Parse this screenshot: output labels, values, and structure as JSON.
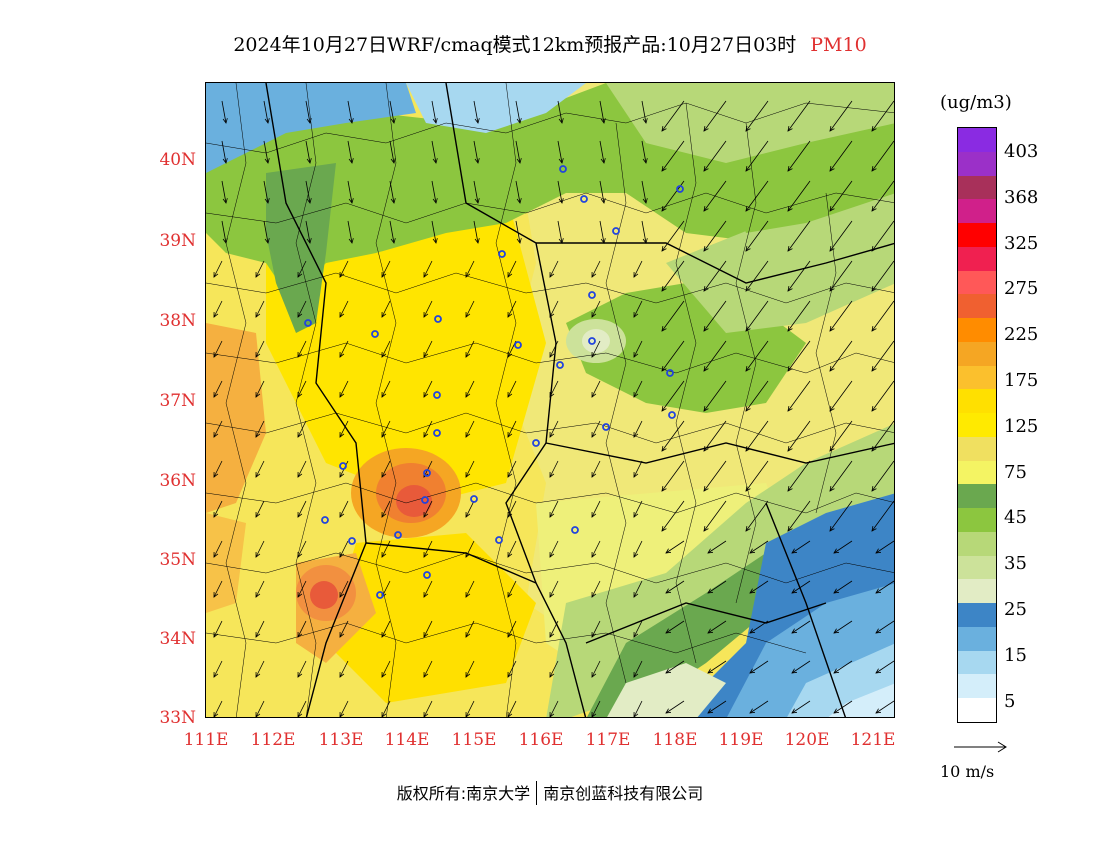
{
  "header": {
    "title": "2024年10月27日WRF/cmaq模式12km预报产品:10月27日03时",
    "pollutant": "PM10"
  },
  "axes": {
    "y_ticks": [
      "40N",
      "39N",
      "38N",
      "37N",
      "36N",
      "35N",
      "34N",
      "33N"
    ],
    "x_ticks": [
      "111E",
      "112E",
      "113E",
      "114E",
      "115E",
      "116E",
      "117E",
      "118E",
      "119E",
      "120E",
      "121E"
    ]
  },
  "legend": {
    "units": "(ug/m3)",
    "labels": [
      "403",
      "368",
      "325",
      "275",
      "225",
      "175",
      "125",
      "75",
      "45",
      "35",
      "25",
      "15",
      "5"
    ],
    "colors": [
      "#8a2be2",
      "#9b30c8",
      "#a8305a",
      "#d0208a",
      "#ff0000",
      "#f02050",
      "#ff5858",
      "#f06030",
      "#ff8c00",
      "#f5a623",
      "#fbc02d",
      "#ffe000",
      "#ffea00",
      "#f0e060",
      "#f4f463",
      "#6aa84f",
      "#8cc63f",
      "#b7d878",
      "#cce29a",
      "#e2ecc5",
      "#3d85c6",
      "#6ab0de",
      "#a7d8f0",
      "#d4eefa",
      "#ffffff"
    ],
    "wind_ref": "10 m/s"
  },
  "footer": {
    "copyright": "版权所有:南京大学",
    "company": "南京创蓝科技有限公司"
  },
  "colors": {
    "tick_label": "#e03030",
    "station_marker": "#2244dd"
  }
}
